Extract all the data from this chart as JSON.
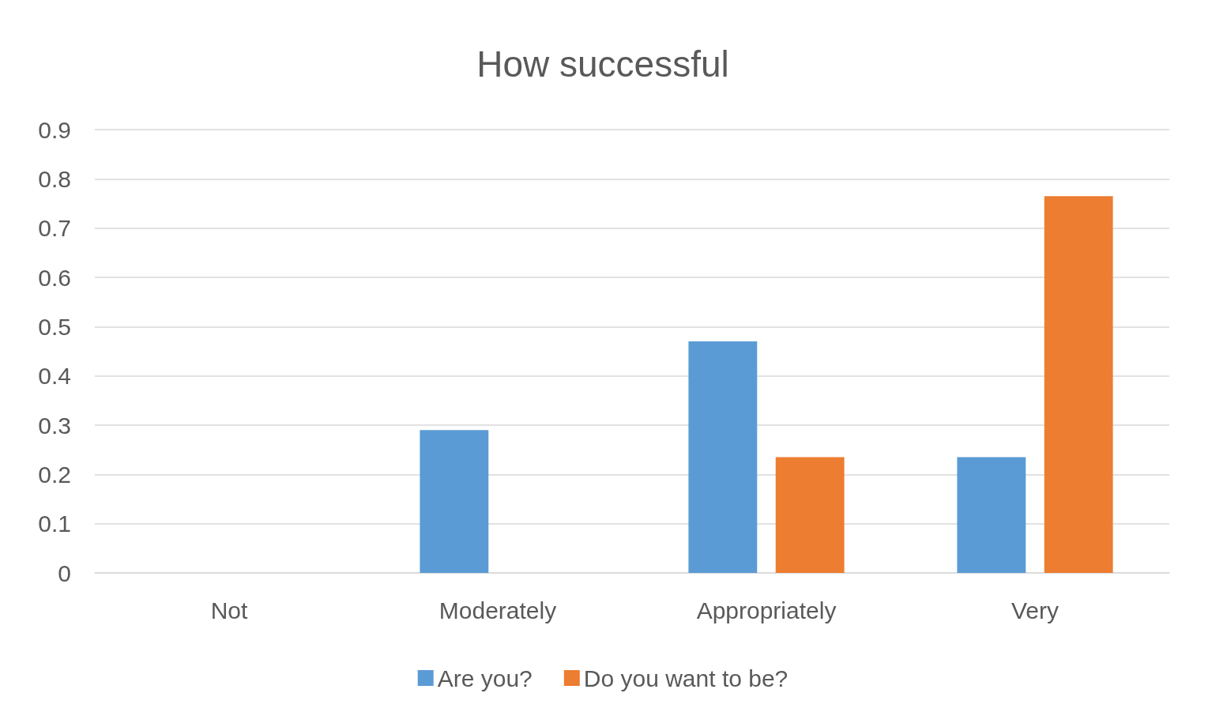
{
  "chart_data": {
    "type": "bar",
    "title": "How successful",
    "categories": [
      "Not",
      "Moderately",
      "Appropriately",
      "Very"
    ],
    "series": [
      {
        "name": "Are you?",
        "color": "#5b9bd5",
        "values": [
          0,
          0.29,
          0.47,
          0.235
        ]
      },
      {
        "name": "Do you want to be?",
        "color": "#ed7d31",
        "values": [
          0,
          0,
          0.235,
          0.765
        ]
      }
    ],
    "ylim": [
      0,
      0.9
    ],
    "yticks": [
      0,
      0.1,
      0.2,
      0.3,
      0.4,
      0.5,
      0.6,
      0.7,
      0.8,
      0.9
    ],
    "grid": "y",
    "legend": "bottom"
  }
}
